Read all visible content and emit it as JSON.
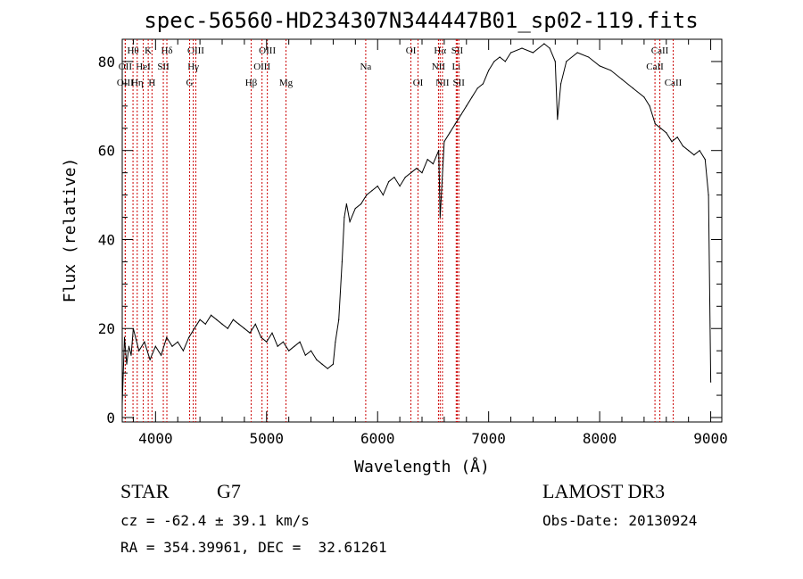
{
  "chart_data": {
    "type": "line",
    "title": "spec-56560-HD234307N344447B01_sp02-119.fits",
    "xlabel": "Wavelength (Å)",
    "ylabel": "Flux (relative)",
    "xlim": [
      3700,
      9100
    ],
    "ylim": [
      -1,
      85
    ],
    "x_ticks": [
      4000,
      5000,
      6000,
      7000,
      8000,
      9000
    ],
    "y_ticks": [
      0,
      20,
      40,
      60,
      80
    ],
    "grid": false,
    "series": [
      {
        "color": "#000000",
        "x": [
          3700,
          3720,
          3740,
          3760,
          3780,
          3800,
          3850,
          3900,
          3950,
          4000,
          4050,
          4100,
          4150,
          4200,
          4250,
          4300,
          4350,
          4400,
          4450,
          4500,
          4550,
          4600,
          4650,
          4700,
          4750,
          4800,
          4850,
          4900,
          4950,
          5000,
          5050,
          5100,
          5150,
          5200,
          5250,
          5300,
          5350,
          5400,
          5450,
          5500,
          5550,
          5600,
          5620,
          5650,
          5680,
          5700,
          5720,
          5750,
          5800,
          5850,
          5900,
          5950,
          6000,
          6050,
          6100,
          6150,
          6200,
          6250,
          6300,
          6350,
          6400,
          6450,
          6500,
          6550,
          6563,
          6600,
          6650,
          6700,
          6750,
          6800,
          6850,
          6900,
          6950,
          7000,
          7050,
          7100,
          7150,
          7200,
          7300,
          7400,
          7500,
          7550,
          7600,
          7620,
          7650,
          7700,
          7800,
          7900,
          8000,
          8100,
          8200,
          8300,
          8400,
          8450,
          8500,
          8550,
          8600,
          8650,
          8700,
          8750,
          8800,
          8850,
          8900,
          8950,
          8980,
          9000
        ],
        "values": [
          3,
          18,
          12,
          16,
          14,
          20,
          15,
          17,
          13,
          16,
          14,
          18,
          16,
          17,
          15,
          18,
          20,
          22,
          21,
          23,
          22,
          21,
          20,
          22,
          21,
          20,
          19,
          21,
          18,
          17,
          19,
          16,
          17,
          15,
          16,
          17,
          14,
          15,
          13,
          12,
          11,
          12,
          17,
          22,
          35,
          45,
          48,
          44,
          47,
          48,
          50,
          51,
          52,
          50,
          53,
          54,
          52,
          54,
          55,
          56,
          55,
          58,
          57,
          60,
          45,
          62,
          64,
          66,
          68,
          70,
          72,
          74,
          75,
          78,
          80,
          81,
          80,
          82,
          83,
          82,
          84,
          83,
          80,
          67,
          75,
          80,
          82,
          81,
          79,
          78,
          76,
          74,
          72,
          70,
          66,
          65,
          64,
          62,
          63,
          61,
          60,
          59,
          60,
          58,
          50,
          8
        ]
      }
    ],
    "line_markers": [
      {
        "label": "Hθ",
        "x": 3797,
        "row": 0
      },
      {
        "label": "OII",
        "x": 3727,
        "row": 1
      },
      {
        "label": "OIII",
        "x": 3727,
        "row": 2
      },
      {
        "label": "K",
        "x": 3934,
        "row": 0
      },
      {
        "label": "HeI",
        "x": 3889,
        "row": 1
      },
      {
        "label": "Hη",
        "x": 3835,
        "row": 2
      },
      {
        "label": "Hδ",
        "x": 4102,
        "row": 0
      },
      {
        "label": "SII",
        "x": 4070,
        "row": 1
      },
      {
        "label": "H",
        "x": 3968,
        "row": 2
      },
      {
        "label": "OIII",
        "x": 4363,
        "row": 0
      },
      {
        "label": "Hγ",
        "x": 4340,
        "row": 1
      },
      {
        "label": "G",
        "x": 4307,
        "row": 2
      },
      {
        "label": "OIII",
        "x": 5007,
        "row": 0
      },
      {
        "label": "OIII",
        "x": 4959,
        "row": 1
      },
      {
        "label": "Hβ",
        "x": 4861,
        "row": 2
      },
      {
        "label": "Mg",
        "x": 5175,
        "row": 2
      },
      {
        "label": "Na",
        "x": 5893,
        "row": 1
      },
      {
        "label": "OI",
        "x": 6300,
        "row": 0
      },
      {
        "label": "OI",
        "x": 6364,
        "row": 2
      },
      {
        "label": "Hα",
        "x": 6563,
        "row": 0
      },
      {
        "label": "SII",
        "x": 6717,
        "row": 0
      },
      {
        "label": "NII",
        "x": 6548,
        "row": 1
      },
      {
        "label": "Li",
        "x": 6708,
        "row": 1
      },
      {
        "label": "NII",
        "x": 6584,
        "row": 2
      },
      {
        "label": "SII",
        "x": 6731,
        "row": 2
      },
      {
        "label": "CaII",
        "x": 8542,
        "row": 0
      },
      {
        "label": "CaII",
        "x": 8498,
        "row": 1
      },
      {
        "label": "CaII",
        "x": 8662,
        "row": 2
      }
    ]
  },
  "info": {
    "object_class": "STAR",
    "subclass": "G7",
    "survey": "LAMOST DR3",
    "cz": "cz = -62.4 ± 39.1 km/s",
    "obs_date": "Obs-Date: 20130924",
    "coords": "RA = 354.39961, DEC =  32.61261"
  }
}
